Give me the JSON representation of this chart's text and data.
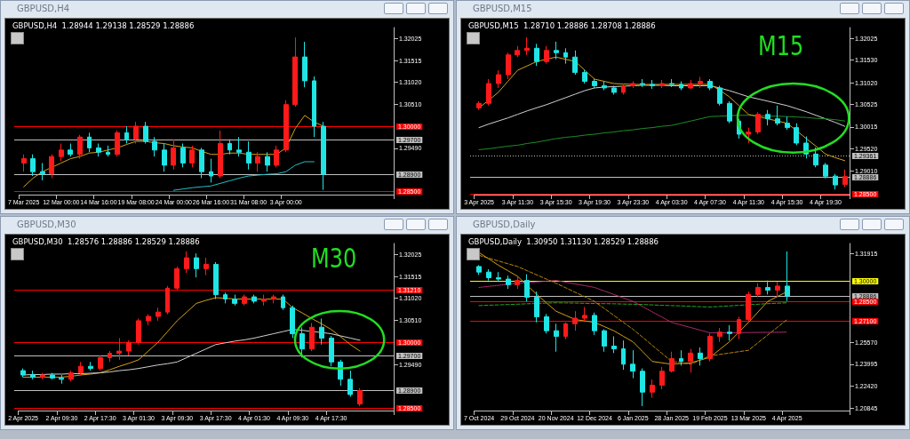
{
  "chart_data": [
    {
      "type": "candlestick",
      "title": "GBPUSD,H4",
      "subtitle": "GBPUSD,H4  1.28944 1.29138 1.28529 1.28886",
      "categories": [
        "7 Mar 2025",
        null,
        null,
        null,
        "12 Mar 00:00",
        null,
        null,
        null,
        "14 Mar 16:00",
        null,
        null,
        null,
        "19 Mar 08:00",
        null,
        null,
        null,
        "24 Mar 00:00",
        null,
        null,
        null,
        "26 Mar 16:00",
        null,
        null,
        null,
        "31 Mar 08:00",
        null,
        null,
        null,
        "3 Apr 00:00",
        null,
        null,
        null,
        null,
        null,
        null,
        null,
        null,
        null,
        null,
        null
      ],
      "ohlc": [
        [
          1.2915,
          1.2935,
          1.2895,
          1.2925
        ],
        [
          1.2925,
          1.2935,
          1.2885,
          1.2895
        ],
        [
          1.2895,
          1.2915,
          1.2875,
          1.289
        ],
        [
          1.289,
          1.2935,
          1.288,
          1.293
        ],
        [
          1.293,
          1.296,
          1.292,
          1.2945
        ],
        [
          1.2945,
          1.296,
          1.293,
          1.2935
        ],
        [
          1.2935,
          1.298,
          1.2925,
          1.2975
        ],
        [
          1.2975,
          1.2985,
          1.294,
          1.295
        ],
        [
          1.295,
          1.296,
          1.293,
          1.294
        ],
        [
          1.294,
          1.2955,
          1.293,
          1.2935
        ],
        [
          1.2935,
          1.299,
          1.293,
          1.2985
        ],
        [
          1.2985,
          1.3,
          1.296,
          1.297
        ],
        [
          1.297,
          1.301,
          1.296,
          1.3
        ],
        [
          1.3,
          1.301,
          1.296,
          1.2965
        ],
        [
          1.2965,
          1.2975,
          1.293,
          1.2945
        ],
        [
          1.2945,
          1.296,
          1.2895,
          1.291
        ],
        [
          1.291,
          1.297,
          1.29,
          1.295
        ],
        [
          1.295,
          1.296,
          1.2905,
          1.2915
        ],
        [
          1.2915,
          1.2955,
          1.2905,
          1.2945
        ],
        [
          1.2945,
          1.295,
          1.288,
          1.2895
        ],
        [
          1.2895,
          1.2925,
          1.287,
          1.2885
        ],
        [
          1.2885,
          1.299,
          1.288,
          1.296
        ],
        [
          1.296,
          1.297,
          1.2935,
          1.2945
        ],
        [
          1.2945,
          1.2975,
          1.293,
          1.294
        ],
        [
          1.294,
          1.2965,
          1.29,
          1.2915
        ],
        [
          1.2915,
          1.294,
          1.2895,
          1.293
        ],
        [
          1.293,
          1.294,
          1.2895,
          1.291
        ],
        [
          1.291,
          1.2955,
          1.2905,
          1.2945
        ],
        [
          1.2945,
          1.306,
          1.294,
          1.305
        ],
        [
          1.305,
          1.3205,
          1.3045,
          1.316
        ],
        [
          1.316,
          1.3195,
          1.309,
          1.3105
        ],
        [
          1.3105,
          1.3115,
          1.2975,
          1.3
        ],
        [
          1.3,
          1.301,
          1.2853,
          1.2889
        ],
        null,
        null,
        null,
        null,
        null,
        null,
        null
      ],
      "series": [
        {
          "type": "line",
          "color": "#d4a017",
          "values": [
            1.286,
            1.288,
            1.2895,
            1.2905,
            1.2915,
            1.2925,
            1.293,
            1.2938,
            1.294,
            1.2945,
            1.295,
            1.2958,
            1.2965,
            1.2965,
            1.2962,
            1.296,
            1.2955,
            1.2952,
            1.295,
            1.2942,
            1.2935,
            1.2935,
            1.2938,
            1.2938,
            1.2935,
            1.2935,
            1.2935,
            1.2935,
            1.295,
            1.2995,
            1.3025,
            1.301,
            1.3,
            null,
            null,
            null,
            null,
            null,
            null,
            null
          ]
        },
        {
          "type": "line",
          "color": "#20c0c8",
          "values": [
            null,
            null,
            null,
            null,
            null,
            null,
            null,
            null,
            null,
            null,
            null,
            null,
            null,
            null,
            null,
            null,
            1.2852,
            1.2855,
            1.2858,
            1.286,
            1.2862,
            1.2868,
            1.2874,
            1.288,
            1.2885,
            1.2887,
            1.2889,
            1.289,
            1.2895,
            1.291,
            1.2918,
            1.2918,
            null,
            null,
            null,
            null,
            null,
            null,
            null,
            null
          ]
        }
      ],
      "ylim": [
        1.2842,
        1.3228
      ],
      "yticks": [
        {
          "value": 1.32025,
          "label": "1.32025"
        },
        {
          "value": 1.31515,
          "label": "1.31515"
        },
        {
          "value": 1.3102,
          "label": "1.31020"
        },
        {
          "value": 1.3051,
          "label": "1.30510"
        },
        {
          "value": 1.2949,
          "label": "1.29490"
        }
      ],
      "ref_lines": [
        {
          "axis": "y",
          "value": 1.3,
          "label": "1.30000",
          "color": "#ff0000"
        },
        {
          "axis": "y",
          "value": 1.297,
          "label": "1.29700",
          "color": "#c0c0c0"
        },
        {
          "axis": "y",
          "value": 1.289,
          "label": "1.28900",
          "color": "#c0c0c0"
        },
        {
          "axis": "y",
          "value": 1.285,
          "label": "1.28500",
          "color": "#ff0000"
        }
      ]
    },
    {
      "type": "candlestick",
      "title": "GBPUSD,M15",
      "subtitle": "GBPUSD,M15  1.28710 1.28886 1.28708 1.28886",
      "categories": [
        "3 Apr 2025",
        null,
        null,
        null,
        "3 Apr 11:30",
        null,
        null,
        null,
        "3 Apr 15:30",
        null,
        null,
        null,
        "3 Apr 19:30",
        null,
        null,
        null,
        "3 Apr 23:30",
        null,
        null,
        null,
        "4 Apr 03:30",
        null,
        null,
        null,
        "4 Apr 07:30",
        null,
        null,
        null,
        "4 Apr 11:30",
        null,
        null,
        null,
        "4 Apr 15:30",
        null,
        null,
        null,
        "4 Apr 19:30",
        null,
        null
      ],
      "ohlc": [
        [
          1.3045,
          1.306,
          1.304,
          1.3055
        ],
        [
          1.3055,
          1.311,
          1.305,
          1.31
        ],
        [
          1.31,
          1.313,
          1.309,
          1.312
        ],
        [
          1.312,
          1.317,
          1.311,
          1.3165
        ],
        [
          1.3165,
          1.3185,
          1.316,
          1.3175
        ],
        [
          1.3175,
          1.3205,
          1.3165,
          1.318
        ],
        [
          1.318,
          1.319,
          1.314,
          1.315
        ],
        [
          1.315,
          1.3185,
          1.3145,
          1.3175
        ],
        [
          1.3175,
          1.3195,
          1.3155,
          1.317
        ],
        [
          1.317,
          1.318,
          1.3145,
          1.316
        ],
        [
          1.316,
          1.3175,
          1.312,
          1.3125
        ],
        [
          1.3125,
          1.313,
          1.31,
          1.3105
        ],
        [
          1.3105,
          1.311,
          1.309,
          1.3095
        ],
        [
          1.3095,
          1.3105,
          1.3085,
          1.309
        ],
        [
          1.309,
          1.3095,
          1.3075,
          1.308
        ],
        [
          1.308,
          1.31,
          1.3075,
          1.3095
        ],
        [
          1.3095,
          1.3105,
          1.309,
          1.31
        ],
        [
          1.31,
          1.311,
          1.3092,
          1.3098
        ],
        [
          1.3098,
          1.3108,
          1.3088,
          1.3095
        ],
        [
          1.3095,
          1.3108,
          1.309,
          1.31
        ],
        [
          1.31,
          1.311,
          1.3092,
          1.3098
        ],
        [
          1.3098,
          1.3105,
          1.3085,
          1.309
        ],
        [
          1.309,
          1.3108,
          1.3088,
          1.31
        ],
        [
          1.31,
          1.3115,
          1.309,
          1.3105
        ],
        [
          1.3105,
          1.311,
          1.3085,
          1.309
        ],
        [
          1.309,
          1.3095,
          1.305,
          1.3055
        ],
        [
          1.3055,
          1.306,
          1.301,
          1.3015
        ],
        [
          1.3015,
          1.302,
          1.2975,
          1.2985
        ],
        [
          1.2985,
          1.3,
          1.2965,
          1.299
        ],
        [
          1.299,
          1.3035,
          1.2985,
          1.303
        ],
        [
          1.303,
          1.304,
          1.3005,
          1.302
        ],
        [
          1.302,
          1.305,
          1.3005,
          1.301
        ],
        [
          1.301,
          1.3025,
          1.2995,
          1.3
        ],
        [
          1.3,
          1.301,
          1.296,
          1.2965
        ],
        [
          1.2965,
          1.298,
          1.293,
          1.294
        ],
        [
          1.294,
          1.2955,
          1.291,
          1.2915
        ],
        [
          1.2915,
          1.292,
          1.2885,
          1.289
        ],
        [
          1.289,
          1.2895,
          1.286,
          1.287
        ],
        [
          1.2871,
          1.2905,
          1.2865,
          1.2889
        ]
      ],
      "series": [
        {
          "type": "line",
          "color": "#d0d0d0",
          "values": [
            1.3,
            1.3008,
            1.3015,
            1.3022,
            1.303,
            1.3038,
            1.3045,
            1.3052,
            1.306,
            1.3068,
            1.3076,
            1.3084,
            1.309,
            1.3092,
            1.3093,
            1.3094,
            1.3095,
            1.3096,
            1.3096,
            1.3096,
            1.3095,
            1.3095,
            1.3095,
            1.3095,
            1.3095,
            1.309,
            1.3084,
            1.3077,
            1.307,
            1.3065,
            1.306,
            1.3055,
            1.305,
            1.3043,
            1.3036,
            1.3028,
            1.302,
            1.3012,
            1.3003
          ]
        },
        {
          "type": "line",
          "color": "#1e8c2a",
          "values": [
            1.295,
            1.2952,
            1.2955,
            1.2958,
            1.296,
            1.2964,
            1.2967,
            1.2971,
            1.2975,
            1.2978,
            1.298,
            1.2983,
            1.2985,
            1.2988,
            1.299,
            1.2993,
            1.2995,
            1.2998,
            1.3,
            1.3003,
            1.3005,
            1.301,
            1.3015,
            1.302,
            1.3025,
            1.3026,
            1.3027,
            1.3028,
            1.3028,
            1.3027,
            1.3026,
            1.3026,
            1.3025,
            1.3024,
            1.3023,
            1.3021,
            1.302,
            1.3018,
            1.3015
          ]
        },
        {
          "type": "line",
          "color": "#d4a017",
          "values": [
            1.3045,
            1.3062,
            1.308,
            1.3105,
            1.313,
            1.314,
            1.315,
            1.3155,
            1.316,
            1.3155,
            1.315,
            1.313,
            1.311,
            1.3105,
            1.31,
            1.3099,
            1.3098,
            1.3098,
            1.3098,
            1.3098,
            1.3098,
            1.3098,
            1.3098,
            1.3098,
            1.3098,
            1.3085,
            1.307,
            1.305,
            1.303,
            1.3025,
            1.302,
            1.3015,
            1.301,
            1.2993,
            1.2975,
            1.2958,
            1.294,
            1.2932,
            1.2925
          ]
        }
      ],
      "ylim": [
        1.2848,
        1.3227
      ],
      "yticks": [
        {
          "value": 1.32025,
          "label": "1.32025"
        },
        {
          "value": 1.3153,
          "label": "1.31530"
        },
        {
          "value": 1.3102,
          "label": "1.31020"
        },
        {
          "value": 1.30525,
          "label": "1.30525"
        },
        {
          "value": 1.30015,
          "label": "1.30015"
        },
        {
          "value": 1.2952,
          "label": "1.29520"
        },
        {
          "value": 1.2901,
          "label": "1.29010"
        }
      ],
      "ref_lines": [
        {
          "axis": "y",
          "value": 1.29361,
          "label": "1.29361",
          "color": "#c0c0c0",
          "line_style": "dotted"
        },
        {
          "axis": "y",
          "value": 1.28886,
          "label": "1.28886",
          "color": "#c0c0c0"
        },
        {
          "axis": "y",
          "value": 1.285,
          "label": "1.28500",
          "color": "#ff0000"
        }
      ],
      "annotations": [
        "M15"
      ]
    },
    {
      "type": "candlestick",
      "title": "GBPUSD,M30",
      "subtitle": "GBPUSD,M30  1.28576 1.28886 1.28529 1.28886",
      "categories": [
        "2 Apr 2025",
        null,
        null,
        null,
        "2 Apr 09:30",
        null,
        null,
        null,
        "2 Apr 17:30",
        null,
        null,
        null,
        "3 Apr 01:30",
        null,
        null,
        null,
        "3 Apr 09:30",
        null,
        null,
        null,
        "3 Apr 17:30",
        null,
        null,
        null,
        "4 Apr 01:30",
        null,
        null,
        null,
        "4 Apr 09:30",
        null,
        null,
        null,
        "4 Apr 17:30",
        null,
        null,
        null,
        null,
        null,
        null
      ],
      "ohlc": [
        [
          1.2935,
          1.294,
          1.292,
          1.2925
        ],
        [
          1.2925,
          1.2935,
          1.2915,
          1.292
        ],
        [
          1.292,
          1.293,
          1.2915,
          1.2925
        ],
        [
          1.2925,
          1.293,
          1.2915,
          1.2918
        ],
        [
          1.2918,
          1.2925,
          1.2905,
          1.2915
        ],
        [
          1.2915,
          1.2935,
          1.291,
          1.293
        ],
        [
          1.293,
          1.2955,
          1.2925,
          1.2945
        ],
        [
          1.2945,
          1.2955,
          1.2935,
          1.294
        ],
        [
          1.294,
          1.297,
          1.2935,
          1.2965
        ],
        [
          1.2965,
          1.298,
          1.2955,
          1.2975
        ],
        [
          1.2975,
          1.301,
          1.296,
          1.298
        ],
        [
          1.298,
          1.3005,
          1.297,
          1.3
        ],
        [
          1.3,
          1.3055,
          1.2995,
          1.305
        ],
        [
          1.305,
          1.3065,
          1.304,
          1.306
        ],
        [
          1.306,
          1.308,
          1.305,
          1.307
        ],
        [
          1.307,
          1.313,
          1.3065,
          1.3125
        ],
        [
          1.3125,
          1.3175,
          1.312,
          1.317
        ],
        [
          1.317,
          1.321,
          1.316,
          1.3195
        ],
        [
          1.3195,
          1.3205,
          1.315,
          1.317
        ],
        [
          1.317,
          1.3195,
          1.3155,
          1.318
        ],
        [
          1.318,
          1.3185,
          1.31,
          1.311
        ],
        [
          1.311,
          1.3115,
          1.309,
          1.31
        ],
        [
          1.31,
          1.311,
          1.3085,
          1.309
        ],
        [
          1.309,
          1.311,
          1.3085,
          1.3105
        ],
        [
          1.3105,
          1.311,
          1.309,
          1.3095
        ],
        [
          1.3095,
          1.311,
          1.3085,
          1.31
        ],
        [
          1.31,
          1.311,
          1.309,
          1.3105
        ],
        [
          1.3105,
          1.311,
          1.3075,
          1.308
        ],
        [
          1.308,
          1.3085,
          1.301,
          1.302
        ],
        [
          1.302,
          1.3035,
          1.2965,
          1.2985
        ],
        [
          1.2985,
          1.3045,
          1.298,
          1.3035
        ],
        [
          1.3035,
          1.3055,
          1.2995,
          1.301
        ],
        [
          1.301,
          1.3015,
          1.2945,
          1.2955
        ],
        [
          1.2955,
          1.296,
          1.29,
          1.2915
        ],
        [
          1.2915,
          1.2935,
          1.2875,
          1.288
        ],
        [
          1.2858,
          1.2895,
          1.2853,
          1.2889
        ],
        null,
        null,
        null
      ],
      "series": [
        {
          "type": "line",
          "color": "#d4a017",
          "values": [
            1.292,
            1.292,
            1.292,
            1.292,
            1.292,
            1.2922,
            1.2925,
            1.2927,
            1.293,
            1.2937,
            1.2945,
            1.2952,
            1.296,
            1.298,
            1.3,
            1.3025,
            1.305,
            1.307,
            1.309,
            1.3097,
            1.3103,
            1.3102,
            1.31,
            1.31,
            1.31,
            1.31,
            1.31,
            1.31,
            1.308,
            1.3068,
            1.3055,
            1.3043,
            1.303,
            1.3013,
            1.2995,
            1.298,
            null,
            null,
            null
          ]
        },
        {
          "type": "line",
          "color": "#d0d0d0",
          "values": [
            1.2925,
            1.2926,
            1.2926,
            1.2927,
            1.2927,
            1.2928,
            1.2928,
            1.2929,
            1.293,
            1.2932,
            1.2935,
            1.2937,
            1.294,
            1.2944,
            1.2948,
            1.2951,
            1.2955,
            1.2965,
            1.2975,
            1.2985,
            1.2995,
            1.2999,
            1.3003,
            1.3006,
            1.301,
            1.3015,
            1.302,
            1.3025,
            1.303,
            1.3028,
            1.3025,
            1.3023,
            1.302,
            1.3015,
            1.301,
            1.3005,
            null,
            null,
            null
          ]
        }
      ],
      "ylim": [
        1.2843,
        1.3228
      ],
      "yticks": [
        {
          "value": 1.32025,
          "label": "1.32025"
        },
        {
          "value": 1.31515,
          "label": "1.31515"
        },
        {
          "value": 1.3102,
          "label": "1.31020"
        },
        {
          "value": 1.3051,
          "label": "1.30510"
        },
        {
          "value": 1.2949,
          "label": "1.29490"
        }
      ],
      "ref_lines": [
        {
          "axis": "y",
          "value": 1.3121,
          "label": "1.31210",
          "color": "#ff0000"
        },
        {
          "axis": "y",
          "value": 1.3,
          "label": "1.30000",
          "color": "#ff0000"
        },
        {
          "axis": "y",
          "value": 1.297,
          "label": "1.29700",
          "color": "#c0c0c0"
        },
        {
          "axis": "y",
          "value": 1.289,
          "label": "1.28900",
          "color": "#c0c0c0"
        },
        {
          "axis": "y",
          "value": 1.285,
          "label": "1.28500",
          "color": "#ff0000"
        }
      ],
      "annotations": [
        "M30"
      ]
    },
    {
      "type": "candlestick",
      "title": "GBPUSD,Daily",
      "subtitle": "GBPUSD,Daily  1.30950 1.31130 1.28529 1.28886",
      "categories": [
        "7 Oct 2024",
        null,
        null,
        null,
        "29 Oct 2024",
        null,
        null,
        null,
        "20 Nov 2024",
        null,
        null,
        null,
        "12 Dec 2024",
        null,
        null,
        null,
        "6 Jan 2025",
        null,
        null,
        null,
        "28 Jan 2025",
        null,
        null,
        null,
        "19 Feb 2025",
        null,
        null,
        null,
        "13 Mar 2025",
        null,
        null,
        null,
        "4 Apr 2025",
        null,
        null,
        null,
        null,
        null,
        null
      ],
      "ohlc": [
        [
          1.31,
          1.311,
          1.304,
          1.306
        ],
        [
          1.306,
          1.308,
          1.3,
          1.302
        ],
        [
          1.302,
          1.306,
          1.299,
          1.301
        ],
        [
          1.301,
          1.3035,
          1.294,
          1.297
        ],
        [
          1.297,
          1.303,
          1.294,
          1.3
        ],
        [
          1.3,
          1.3045,
          1.285,
          1.288
        ],
        [
          1.288,
          1.292,
          1.27,
          1.274
        ],
        [
          1.274,
          1.276,
          1.262,
          1.264
        ],
        [
          1.264,
          1.269,
          1.249,
          1.26
        ],
        [
          1.26,
          1.27,
          1.258,
          1.269
        ],
        [
          1.269,
          1.278,
          1.264,
          1.273
        ],
        [
          1.273,
          1.281,
          1.271,
          1.275
        ],
        [
          1.275,
          1.277,
          1.261,
          1.264
        ],
        [
          1.264,
          1.265,
          1.249,
          1.253
        ],
        [
          1.253,
          1.26,
          1.248,
          1.251
        ],
        [
          1.251,
          1.257,
          1.236,
          1.24
        ],
        [
          1.24,
          1.25,
          1.23,
          1.235
        ],
        [
          1.235,
          1.237,
          1.21,
          1.22
        ],
        [
          1.22,
          1.229,
          1.216,
          1.225
        ],
        [
          1.225,
          1.238,
          1.222,
          1.235
        ],
        [
          1.235,
          1.249,
          1.234,
          1.244
        ],
        [
          1.244,
          1.25,
          1.239,
          1.242
        ],
        [
          1.242,
          1.251,
          1.234,
          1.248
        ],
        [
          1.248,
          1.252,
          1.239,
          1.244
        ],
        [
          1.244,
          1.262,
          1.242,
          1.26
        ],
        [
          1.26,
          1.266,
          1.256,
          1.263
        ],
        [
          1.263,
          1.268,
          1.257,
          1.262
        ],
        [
          1.262,
          1.274,
          1.258,
          1.272
        ],
        [
          1.272,
          1.292,
          1.271,
          1.29
        ],
        [
          1.29,
          1.298,
          1.288,
          1.295
        ],
        [
          1.295,
          1.3,
          1.29,
          1.293
        ],
        [
          1.293,
          1.299,
          1.288,
          1.296
        ],
        [
          1.296,
          1.3208,
          1.2853,
          1.2889
        ],
        null,
        null,
        null,
        null,
        null,
        null
      ],
      "series": [
        {
          "type": "line",
          "color": "#d4a017",
          "values": [
            1.32,
            1.3155,
            1.311,
            1.307,
            1.303,
            1.2965,
            1.29,
            1.284,
            1.278,
            1.275,
            1.272,
            1.271,
            1.27,
            1.267,
            1.264,
            1.26,
            1.256,
            1.249,
            1.242,
            1.241,
            1.24,
            1.2405,
            1.241,
            1.243,
            1.245,
            1.2505,
            1.256,
            1.263,
            1.27,
            1.2775,
            1.285,
            1.2885,
            1.292,
            null,
            null,
            null,
            null,
            null,
            null
          ]
        },
        {
          "type": "line",
          "color": "#1ea82a",
          "line_style": "dashed",
          "values": [
            1.282,
            1.2823,
            1.2825,
            1.2828,
            1.283,
            1.2833,
            1.2835,
            1.2838,
            1.284,
            1.2839,
            1.2838,
            1.2836,
            1.2835,
            1.2834,
            1.2833,
            1.2831,
            1.283,
            1.2828,
            1.2825,
            1.2822,
            1.282,
            1.2818,
            1.2815,
            1.2812,
            1.281,
            1.2814,
            1.2818,
            1.2822,
            1.2826,
            1.283,
            1.2834,
            1.2837,
            1.284,
            null,
            null,
            null,
            null,
            null,
            null
          ]
        },
        {
          "type": "line",
          "color": "#c0307a",
          "line_style": "dotted",
          "values": [
            1.295,
            1.2958,
            1.2965,
            1.2973,
            1.298,
            1.2985,
            1.299,
            1.2995,
            1.3,
            1.2988,
            1.2975,
            1.2963,
            1.295,
            1.2925,
            1.29,
            1.2875,
            1.285,
            1.2813,
            1.2775,
            1.2738,
            1.27,
            1.2681,
            1.2663,
            1.2644,
            1.2625,
            1.2625,
            1.2626,
            1.2626,
            1.2627,
            1.2628,
            1.2628,
            1.2629,
            1.263,
            null,
            null,
            null,
            null,
            null,
            null
          ]
        },
        {
          "type": "line",
          "color": "#b8860b",
          "line_style": "dashed",
          "values": [
            1.318,
            1.316,
            1.314,
            1.312,
            1.31,
            1.307,
            1.304,
            1.301,
            1.298,
            1.2948,
            1.2915,
            1.2883,
            1.285,
            1.28,
            1.275,
            1.27,
            1.265,
            1.2593,
            1.2535,
            1.2478,
            1.242,
            1.241,
            1.24,
            1.243,
            1.246,
            1.247,
            1.248,
            1.249,
            1.25,
            1.2555,
            1.261,
            1.2665,
            1.272,
            null,
            null,
            null,
            null,
            null,
            null
          ]
        }
      ],
      "ylim": [
        1.2068,
        1.3265
      ],
      "yticks": [
        {
          "value": 1.31915,
          "label": "1.31915"
        },
        {
          "value": 1.2557,
          "label": "1.25570"
        },
        {
          "value": 1.23995,
          "label": "1.23995"
        },
        {
          "value": 1.2242,
          "label": "1.22420"
        },
        {
          "value": 1.20845,
          "label": "1.20845"
        }
      ],
      "ref_lines": [
        {
          "axis": "y",
          "value": 1.3,
          "label": "1.30000",
          "color": "#ffff00"
        },
        {
          "axis": "y",
          "value": 1.28886,
          "label": "1.28886",
          "color": "#c0c0c0"
        },
        {
          "axis": "y",
          "value": 1.285,
          "label": "1.28500",
          "color": "#ff0000"
        },
        {
          "axis": "y",
          "value": 1.271,
          "label": "1.27100",
          "color": "#ff0000"
        }
      ]
    }
  ]
}
